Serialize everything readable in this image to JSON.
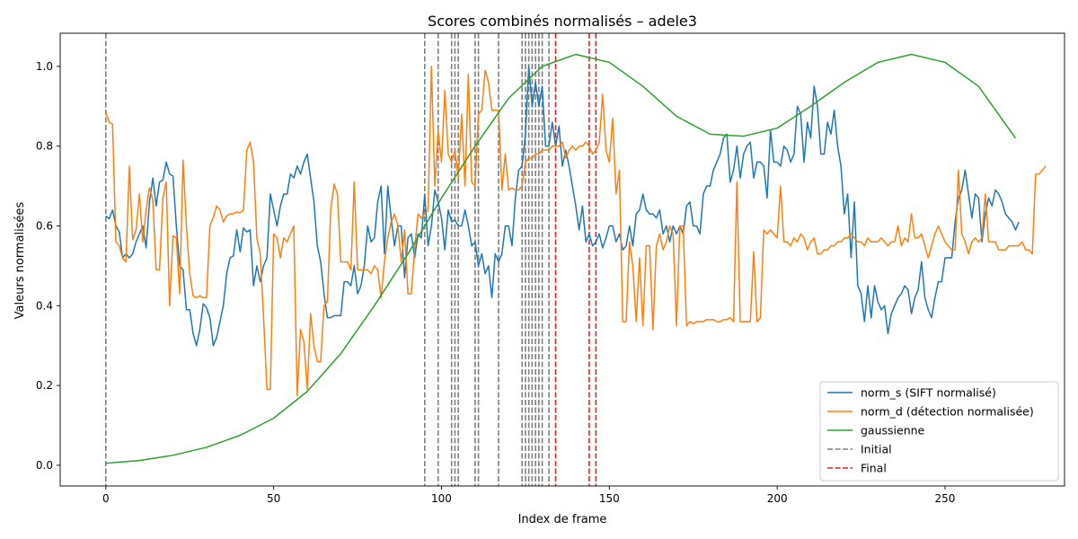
{
  "chart_data": {
    "type": "line",
    "title": "Scores combinés normalisés – adele3",
    "xlabel": "Index de frame",
    "ylabel": "Valeurs normalisées",
    "xlim": [
      -13.6,
      285.6
    ],
    "ylim": [
      -0.052,
      1.083
    ],
    "xticks": [
      0,
      50,
      100,
      150,
      200,
      250
    ],
    "xtick_labels": [
      "0",
      "50",
      "100",
      "150",
      "200",
      "250"
    ],
    "yticks": [
      0.0,
      0.2,
      0.4,
      0.6,
      0.8,
      1.0
    ],
    "ytick_labels": [
      "0.0",
      "0.2",
      "0.4",
      "0.6",
      "0.8",
      "1.0"
    ],
    "grid": false,
    "legend_position": "bottom-right",
    "colors": {
      "norm_s": "#1f77b4",
      "norm_d": "#ff7f0e",
      "gaussienne": "#2ca02c",
      "initial": "#7f7f7f",
      "final": "#d62728"
    },
    "series": [
      {
        "name": "norm_s (SIFT normalisé)",
        "key": "norm_s",
        "x_start": 0,
        "values": [
          0.625,
          0.618,
          0.64,
          0.6,
          0.585,
          0.52,
          0.53,
          0.52,
          0.53,
          0.56,
          0.58,
          0.6,
          0.545,
          0.66,
          0.72,
          0.65,
          0.71,
          0.715,
          0.76,
          0.73,
          0.725,
          0.6,
          0.5,
          0.49,
          0.39,
          0.39,
          0.33,
          0.3,
          0.34,
          0.405,
          0.395,
          0.37,
          0.3,
          0.32,
          0.36,
          0.4,
          0.48,
          0.52,
          0.525,
          0.59,
          0.535,
          0.595,
          0.585,
          0.59,
          0.45,
          0.5,
          0.46,
          0.5,
          0.52,
          0.68,
          0.64,
          0.6,
          0.65,
          0.68,
          0.68,
          0.73,
          0.72,
          0.75,
          0.73,
          0.76,
          0.78,
          0.72,
          0.66,
          0.55,
          0.51,
          0.43,
          0.37,
          0.37,
          0.375,
          0.375,
          0.375,
          0.46,
          0.46,
          0.45,
          0.5,
          0.43,
          0.45,
          0.5,
          0.6,
          0.56,
          0.57,
          0.66,
          0.7,
          0.53,
          0.7,
          0.62,
          0.55,
          0.6,
          0.6,
          0.47,
          0.57,
          0.58,
          0.52,
          0.58,
          0.57,
          0.68,
          0.55,
          0.6,
          0.69,
          0.66,
          0.62,
          0.54,
          0.64,
          0.61,
          0.615,
          0.6,
          0.6,
          0.64,
          0.6,
          0.55,
          0.56,
          0.5,
          0.53,
          0.48,
          0.5,
          0.42,
          0.53,
          0.51,
          0.53,
          0.6,
          0.6,
          0.55,
          0.67,
          0.74,
          0.75,
          0.83,
          1.0,
          0.9,
          0.96,
          0.9,
          0.95,
          0.8,
          0.8,
          0.86,
          0.8,
          0.85,
          0.75,
          0.79,
          0.75,
          0.7,
          0.65,
          0.59,
          0.65,
          0.56,
          0.58,
          0.55,
          0.56,
          0.58,
          0.545,
          0.57,
          0.6,
          0.6,
          0.56,
          0.58,
          0.54,
          0.55,
          0.6,
          0.55,
          0.63,
          0.64,
          0.68,
          0.64,
          0.63,
          0.63,
          0.62,
          0.64,
          0.58,
          0.6,
          0.56,
          0.6,
          0.58,
          0.6,
          0.58,
          0.65,
          0.66,
          0.6,
          0.6,
          0.58,
          0.68,
          0.7,
          0.7,
          0.74,
          0.76,
          0.78,
          0.82,
          0.83,
          0.71,
          0.74,
          0.8,
          0.72,
          0.78,
          0.8,
          0.81,
          0.72,
          0.76,
          0.76,
          0.75,
          0.67,
          0.84,
          0.76,
          0.76,
          0.75,
          0.8,
          0.79,
          0.76,
          0.78,
          0.9,
          0.88,
          0.76,
          0.86,
          0.82,
          0.95,
          0.9,
          0.78,
          0.78,
          0.86,
          0.83,
          0.89,
          0.8,
          0.75,
          0.63,
          0.68,
          0.52,
          0.66,
          0.45,
          0.43,
          0.36,
          0.45,
          0.37,
          0.45,
          0.41,
          0.39,
          0.4,
          0.33,
          0.38,
          0.4,
          0.42,
          0.43,
          0.45,
          0.44,
          0.38,
          0.42,
          0.44,
          0.51,
          0.42,
          0.39,
          0.37,
          0.42,
          0.46,
          0.46,
          0.52,
          0.52,
          0.52,
          0.61,
          0.67,
          0.69,
          0.74,
          0.68,
          0.62,
          0.68,
          0.67,
          0.56,
          0.63,
          0.67,
          0.65,
          0.69,
          0.68,
          0.66,
          0.63,
          0.62,
          0.61,
          0.59,
          0.61
        ]
      },
      {
        "name": "norm_d (détection normalisée)",
        "key": "norm_d",
        "x_start": 0,
        "values": [
          0.885,
          0.86,
          0.855,
          0.56,
          0.55,
          0.52,
          0.51,
          0.75,
          0.565,
          0.59,
          0.68,
          0.56,
          0.64,
          0.695,
          0.665,
          0.49,
          0.49,
          0.67,
          0.71,
          0.4,
          0.575,
          0.57,
          0.43,
          0.765,
          0.6,
          0.48,
          0.425,
          0.42,
          0.425,
          0.42,
          0.42,
          0.6,
          0.62,
          0.65,
          0.64,
          0.61,
          0.625,
          0.63,
          0.63,
          0.635,
          0.633,
          0.64,
          0.79,
          0.81,
          0.76,
          0.57,
          0.53,
          0.37,
          0.19,
          0.19,
          0.58,
          0.57,
          0.52,
          0.57,
          0.56,
          0.58,
          0.6,
          0.175,
          0.34,
          0.31,
          0.19,
          0.38,
          0.3,
          0.26,
          0.26,
          0.4,
          0.41,
          0.64,
          0.705,
          0.68,
          0.51,
          0.51,
          0.51,
          0.49,
          0.71,
          0.49,
          0.49,
          0.49,
          0.49,
          0.48,
          0.5,
          0.49,
          0.42,
          0.51,
          0.57,
          0.61,
          0.63,
          0.6,
          0.51,
          0.59,
          0.43,
          0.43,
          0.54,
          0.63,
          0.62,
          0.63,
          0.64,
          1.0,
          0.7,
          0.84,
          0.76,
          0.94,
          0.78,
          0.76,
          0.79,
          0.72,
          0.88,
          0.7,
          0.98,
          0.71,
          0.7,
          0.88,
          0.89,
          0.99,
          0.96,
          0.89,
          0.89,
          0.89,
          0.69,
          0.78,
          0.69,
          0.695,
          0.69,
          0.69,
          0.7,
          0.76,
          0.77,
          0.77,
          0.78,
          0.78,
          0.79,
          0.79,
          0.79,
          0.8,
          0.8,
          0.8,
          0.81,
          0.77,
          0.79,
          0.8,
          0.79,
          0.8,
          0.8,
          0.81,
          0.8,
          0.78,
          0.79,
          0.81,
          0.93,
          0.79,
          0.76,
          0.87,
          0.68,
          0.74,
          0.36,
          0.36,
          0.56,
          0.5,
          0.36,
          0.52,
          0.35,
          0.55,
          0.55,
          0.34,
          0.55,
          0.58,
          0.54,
          0.56,
          0.6,
          0.58,
          0.35,
          0.6,
          0.6,
          0.35,
          0.36,
          0.355,
          0.36,
          0.36,
          0.36,
          0.365,
          0.365,
          0.365,
          0.36,
          0.36,
          0.365,
          0.365,
          0.37,
          0.36,
          0.71,
          0.36,
          0.36,
          0.36,
          0.36,
          0.535,
          0.36,
          0.37,
          0.59,
          0.58,
          0.59,
          0.58,
          0.57,
          0.7,
          0.56,
          0.56,
          0.55,
          0.57,
          0.56,
          0.58,
          0.57,
          0.54,
          0.56,
          0.57,
          0.53,
          0.53,
          0.54,
          0.54,
          0.55,
          0.55,
          0.56,
          0.56,
          0.57,
          0.57,
          0.58,
          0.57,
          0.56,
          0.56,
          0.55,
          0.57,
          0.56,
          0.56,
          0.56,
          0.57,
          0.56,
          0.55,
          0.56,
          0.56,
          0.6,
          0.55,
          0.57,
          0.56,
          0.63,
          0.57,
          0.57,
          0.58,
          0.55,
          0.52,
          0.55,
          0.58,
          0.6,
          0.58,
          0.56,
          0.55,
          0.54,
          0.54,
          0.74,
          0.58,
          0.56,
          0.53,
          0.56,
          0.57,
          0.56,
          0.57,
          0.68,
          0.56,
          0.56,
          0.56,
          0.54,
          0.54,
          0.54,
          0.55,
          0.55,
          0.55,
          0.55,
          0.56,
          0.54,
          0.54,
          0.53,
          0.73,
          0.73,
          0.74,
          0.75
        ]
      },
      {
        "name": "gaussienne",
        "key": "gaussienne",
        "x": [
          0,
          10,
          20,
          30,
          40,
          50,
          60,
          70,
          80,
          90,
          100,
          110,
          120,
          130,
          140,
          150,
          160,
          170,
          180,
          190,
          200,
          210,
          220,
          230,
          240,
          250,
          260,
          271
        ],
        "values": [
          0.005,
          0.012,
          0.025,
          0.045,
          0.075,
          0.118,
          0.185,
          0.28,
          0.4,
          0.53,
          0.67,
          0.8,
          0.92,
          1.0,
          1.03,
          1.01,
          0.95,
          0.875,
          0.83,
          0.825,
          0.845,
          0.9,
          0.96,
          1.01,
          1.03,
          1.01,
          0.95,
          0.82
        ]
      }
    ],
    "vlines": {
      "initial": {
        "name": "Initial",
        "x": [
          0,
          95,
          99,
          103,
          104,
          105,
          110,
          111,
          117,
          124,
          125,
          126,
          127,
          128,
          129,
          130,
          132
        ]
      },
      "final": {
        "name": "Final",
        "x": [
          134,
          144,
          146
        ]
      }
    }
  }
}
